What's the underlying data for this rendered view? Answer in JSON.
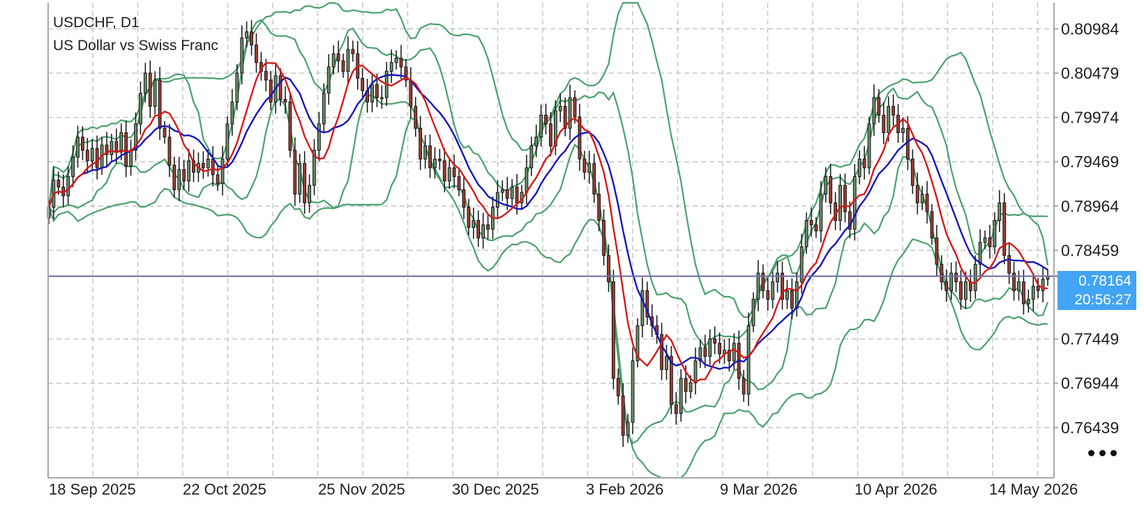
{
  "header": {
    "symbol_line": "USDCHF, D1",
    "description": "US Dollar vs Swiss Franc"
  },
  "price_axis": {
    "labels": [
      "0.80984",
      "0.80479",
      "0.79974",
      "0.79469",
      "0.78964",
      "0.78459",
      "0.77449",
      "0.76944",
      "0.76439"
    ]
  },
  "time_axis": {
    "labels": [
      "18 Sep 2025",
      "22 Oct 2025",
      "25 Nov 2025",
      "30 Dec 2025",
      "3 Feb 2026",
      "9 Mar 2026",
      "10 Apr 2026",
      "14 May 2026"
    ]
  },
  "current_price": {
    "price": "0.78164",
    "countdown": "20:56:27",
    "value": 0.78164
  },
  "colors": {
    "bull_body": "#6b8f6b",
    "bear_body": "#a03c32",
    "candle_outline": "#111111",
    "bollinger": "#4aa06e",
    "ma_fast": "#d41a1a",
    "ma_slow": "#1616b8",
    "price_line": "#6f6fa4",
    "grid": "#bdbdbd",
    "price_tag": "#42a4f5"
  },
  "menu": {
    "icon": "more-horizontal-icon"
  },
  "chart_data": {
    "type": "candlestick",
    "symbol": "USDCHF",
    "timeframe": "D1",
    "ylim": [
      0.7615,
      0.8125
    ],
    "y_ticks": [
      0.80984,
      0.80479,
      0.79974,
      0.79469,
      0.78964,
      0.78459,
      0.77449,
      0.76944,
      0.76439
    ],
    "x_ticks": [
      "18 Sep 2025",
      "22 Oct 2025",
      "25 Nov 2025",
      "30 Dec 2025",
      "3 Feb 2026",
      "9 Mar 2026",
      "10 Apr 2026",
      "14 May 2026"
    ],
    "grid": true,
    "current_price": 0.78164,
    "closes": [
      0.7895,
      0.7926,
      0.7918,
      0.7908,
      0.793,
      0.7952,
      0.7975,
      0.796,
      0.7948,
      0.7962,
      0.794,
      0.7966,
      0.7955,
      0.797,
      0.7958,
      0.798,
      0.7942,
      0.796,
      0.799,
      0.8025,
      0.8048,
      0.801,
      0.804,
      0.7985,
      0.7975,
      0.7943,
      0.7915,
      0.7938,
      0.7925,
      0.7948,
      0.7935,
      0.7945,
      0.794,
      0.795,
      0.7932,
      0.7922,
      0.795,
      0.799,
      0.8015,
      0.8048,
      0.8088,
      0.8095,
      0.808,
      0.806,
      0.805,
      0.804,
      0.8015,
      0.8045,
      0.8018,
      0.8015,
      0.796,
      0.791,
      0.7945,
      0.79,
      0.792,
      0.796,
      0.799,
      0.8025,
      0.8055,
      0.807,
      0.8062,
      0.805,
      0.8075,
      0.807,
      0.8042,
      0.8028,
      0.8015,
      0.8035,
      0.802,
      0.802,
      0.805,
      0.806,
      0.8065,
      0.8055,
      0.804,
      0.801,
      0.7985,
      0.795,
      0.7965,
      0.794,
      0.795,
      0.7948,
      0.7925,
      0.794,
      0.793,
      0.7915,
      0.7895,
      0.7872,
      0.788,
      0.786,
      0.7875,
      0.787,
      0.7895,
      0.7912,
      0.7915,
      0.7905,
      0.7918,
      0.79,
      0.7912,
      0.794,
      0.7965,
      0.7975,
      0.8,
      0.799,
      0.7965,
      0.8005,
      0.801,
      0.7985,
      0.802,
      0.7998,
      0.795,
      0.7935,
      0.7945,
      0.791,
      0.788,
      0.784,
      0.781,
      0.77,
      0.768,
      0.7635,
      0.765,
      0.772,
      0.776,
      0.78,
      0.777,
      0.776,
      0.775,
      0.771,
      0.7725,
      0.767,
      0.766,
      0.77,
      0.7685,
      0.7695,
      0.772,
      0.7735,
      0.7725,
      0.7745,
      0.774,
      0.7728,
      0.7732,
      0.772,
      0.774,
      0.77,
      0.7682,
      0.776,
      0.779,
      0.782,
      0.78,
      0.779,
      0.781,
      0.782,
      0.779,
      0.78,
      0.778,
      0.781,
      0.785,
      0.788,
      0.7875,
      0.7868,
      0.791,
      0.793,
      0.79,
      0.788,
      0.792,
      0.789,
      0.787,
      0.793,
      0.795,
      0.794,
      0.799,
      0.802,
      0.8,
      0.798,
      0.801,
      0.8,
      0.798,
      0.7985,
      0.795,
      0.792,
      0.79,
      0.791,
      0.789,
      0.786,
      0.783,
      0.781,
      0.78,
      0.782,
      0.781,
      0.779,
      0.781,
      0.78,
      0.783,
      0.7855,
      0.786,
      0.785,
      0.788,
      0.79,
      0.784,
      0.782,
      0.78,
      0.781,
      0.7785,
      0.779,
      0.7805,
      0.78,
      0.7813,
      0.7816
    ]
  }
}
